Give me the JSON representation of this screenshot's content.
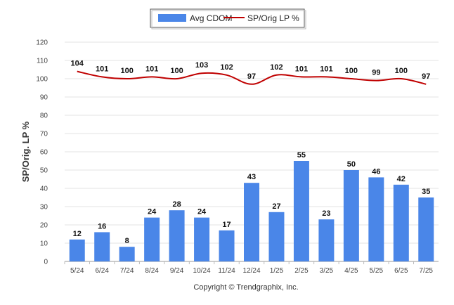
{
  "chart_data": {
    "type": "bar",
    "title": "",
    "xlabel": "",
    "ylabel": "SP/Orig. LP %",
    "ylim": [
      0,
      120
    ],
    "yticks": [
      0,
      10,
      20,
      30,
      40,
      50,
      60,
      70,
      80,
      90,
      100,
      110,
      120
    ],
    "grid": true,
    "legend_position": "top-center",
    "categories": [
      "5/24",
      "6/24",
      "7/24",
      "8/24",
      "9/24",
      "10/24",
      "11/24",
      "12/24",
      "1/25",
      "2/25",
      "3/25",
      "4/25",
      "5/25",
      "6/25",
      "7/25"
    ],
    "series": [
      {
        "name": "Avg CDOM",
        "type": "bar",
        "color": "#4a86e8",
        "values": [
          12,
          16,
          8,
          24,
          28,
          24,
          17,
          43,
          27,
          55,
          23,
          50,
          46,
          42,
          35
        ]
      },
      {
        "name": "SP/Orig LP %",
        "type": "line",
        "color": "#c00000",
        "values": [
          104,
          101,
          100,
          101,
          100,
          103,
          102,
          97,
          102,
          101,
          101,
          100,
          99,
          100,
          97
        ]
      }
    ]
  },
  "credit": "Copyright © Trendgraphix, Inc."
}
